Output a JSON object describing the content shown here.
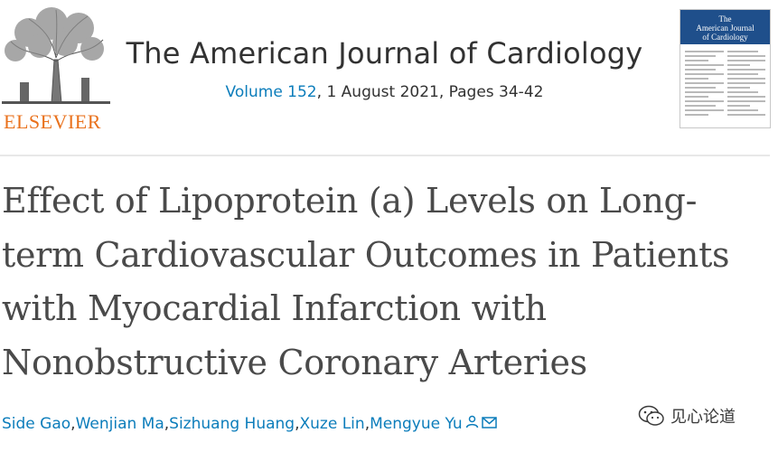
{
  "publisher": {
    "logo_text": "ELSEVIER",
    "logo_icon": "elsevier-tree-icon"
  },
  "journal": {
    "title": "The American Journal of Cardiology",
    "volume_link": "Volume 152",
    "issue_rest": ", 1 August 2021, Pages 34-42",
    "cover_title_line1": "The",
    "cover_title_line2": "American Journal",
    "cover_title_line3": "of Cardiology"
  },
  "article": {
    "title_lines": [
      "Effect of Lipoprotein (a) Levels on Long-",
      "term Cardiovascular Outcomes in Patients",
      "with Myocardial Infarction with",
      "Nonobstructive Coronary Arteries"
    ]
  },
  "authors": {
    "names": [
      "Side Gao",
      "Wenjian Ma",
      "Sizhuang Huang",
      "Xuze Lin",
      "Mengyue Yu"
    ],
    "separator": ", ",
    "icons": [
      "person-icon",
      "envelope-icon"
    ]
  },
  "watermark": {
    "text": "见心论道",
    "icon": "wechat-icon"
  },
  "colors": {
    "link": "#0c7dbb",
    "brand_orange": "#e9711c",
    "text": "#323232",
    "cover_blue": "#1f4f8b"
  }
}
